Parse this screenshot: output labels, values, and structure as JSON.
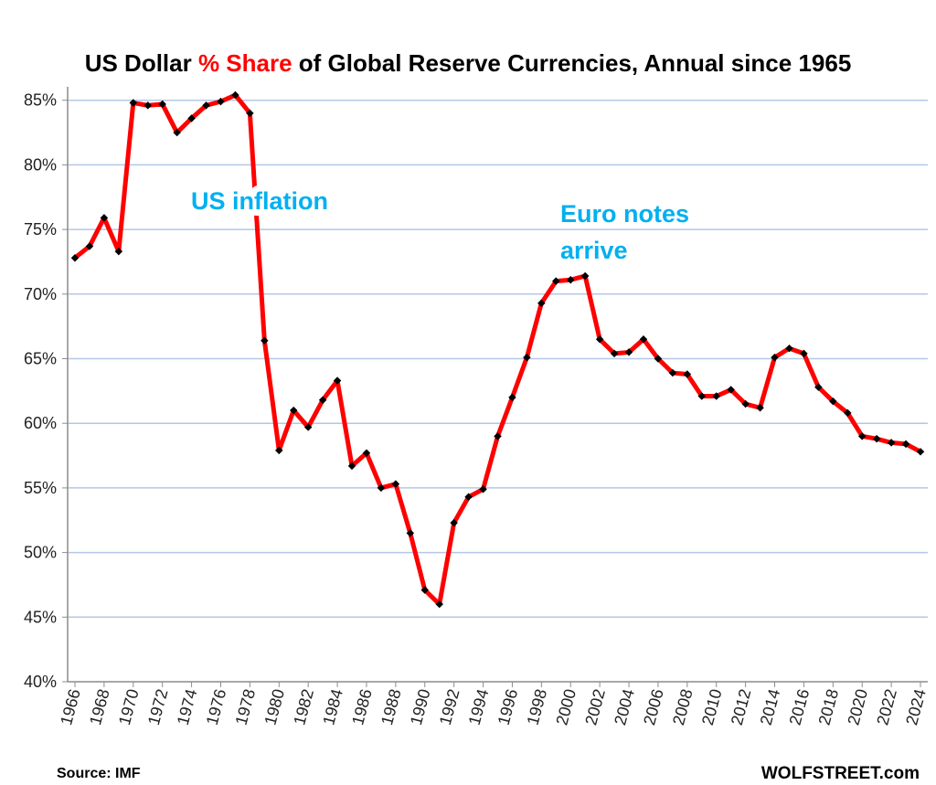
{
  "chart_data": {
    "type": "line",
    "title_parts": [
      "US Dollar ",
      "% Share",
      " of Global Reserve Currencies, Annual since 1965"
    ],
    "title_highlight_color": "#ff0000",
    "xlabel": "",
    "ylabel": "",
    "ylim": [
      40,
      85
    ],
    "yticks": [
      "40%",
      "45%",
      "50%",
      "55%",
      "60%",
      "65%",
      "70%",
      "75%",
      "80%",
      "85%"
    ],
    "xlim": [
      1966,
      2024
    ],
    "xticks": [
      "1966",
      "1968",
      "1970",
      "1972",
      "1974",
      "1976",
      "1978",
      "1980",
      "1982",
      "1984",
      "1986",
      "1988",
      "1990",
      "1992",
      "1994",
      "1996",
      "1998",
      "2000",
      "2002",
      "2004",
      "2006",
      "2008",
      "2010",
      "2012",
      "2014",
      "2016",
      "2018",
      "2020",
      "2022",
      "2024"
    ],
    "grid": true,
    "line_color": "#ff0000",
    "marker_color": "#000000",
    "gridline_color": "#b4c7e7",
    "x": [
      1966,
      1967,
      1968,
      1969,
      1970,
      1971,
      1972,
      1973,
      1974,
      1975,
      1976,
      1977,
      1978,
      1979,
      1980,
      1981,
      1982,
      1983,
      1984,
      1985,
      1986,
      1987,
      1988,
      1989,
      1990,
      1991,
      1992,
      1993,
      1994,
      1995,
      1996,
      1997,
      1998,
      1999,
      2000,
      2001,
      2002,
      2003,
      2004,
      2005,
      2006,
      2007,
      2008,
      2009,
      2010,
      2011,
      2012,
      2013,
      2014,
      2015,
      2016,
      2017,
      2018,
      2019,
      2020,
      2021,
      2022,
      2023,
      2024
    ],
    "values": [
      72.8,
      73.7,
      75.9,
      73.3,
      84.8,
      84.6,
      84.7,
      82.5,
      83.6,
      84.6,
      84.9,
      85.4,
      84.0,
      66.4,
      57.9,
      61.0,
      59.7,
      61.8,
      63.3,
      56.7,
      57.7,
      55.0,
      55.3,
      51.5,
      47.1,
      46.0,
      52.3,
      54.3,
      54.9,
      59.0,
      62.0,
      65.1,
      69.3,
      71.0,
      71.1,
      71.4,
      66.5,
      65.4,
      65.5,
      66.5,
      65.0,
      63.9,
      63.8,
      62.1,
      62.1,
      62.6,
      61.5,
      61.2,
      65.1,
      65.8,
      65.4,
      62.8,
      61.7,
      60.8,
      59.0,
      58.8,
      58.5,
      58.4,
      57.8
    ],
    "annotations": [
      {
        "text": "US inflation"
      },
      {
        "text": "Euro notes"
      },
      {
        "text": "arrive"
      }
    ],
    "annotation_color": "#00b0f0"
  },
  "footer": {
    "source": "Source: IMF",
    "brand": "WOLFSTREET.com"
  }
}
